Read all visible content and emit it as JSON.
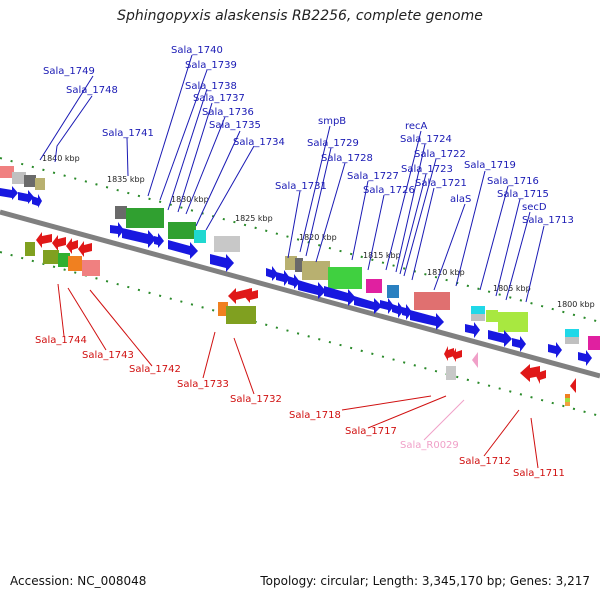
{
  "title": "Sphingopyxis alaskensis RB2256, complete genome",
  "footer": {
    "accession": "Accession: NC_008048",
    "topology": "Topology: circular; Length: 3,345,170 bp; Genes: 3,217"
  },
  "colors": {
    "top_strand_label": "#1a1ab4",
    "bottom_strand_label": "#d01010",
    "rna_label": "#f0a0c8",
    "backbone": "#808080"
  },
  "kbp_labels": [
    "1840 kbp",
    "1835 kbp",
    "1830 kbp",
    "1825 kbp",
    "1820 kbp",
    "1815 kbp",
    "1810 kbp",
    "1805 kbp",
    "1800 kbp"
  ],
  "top_labels": [
    "Sala_1749",
    "Sala_1748",
    "Sala_1740",
    "Sala_1739",
    "Sala_1738",
    "Sala_1737",
    "Sala_1736",
    "Sala_1735",
    "Sala_1734",
    "Sala_1741",
    "smpB",
    "Sala_1729",
    "Sala_1728",
    "Sala_1731",
    "Sala_1727",
    "Sala_1726",
    "recA",
    "Sala_1724",
    "Sala_1722",
    "Sala_1723",
    "Sala_1721",
    "Sala_1719",
    "Sala_1716",
    "Sala_1715",
    "alaS",
    "secD",
    "Sala_1713"
  ],
  "bottom_labels": [
    "Sala_1744",
    "Sala_1743",
    "Sala_1742",
    "Sala_1733",
    "Sala_1732",
    "Sala_1718",
    "Sala_1717",
    "Sala_R0029",
    "Sala_1712",
    "Sala_1711"
  ]
}
